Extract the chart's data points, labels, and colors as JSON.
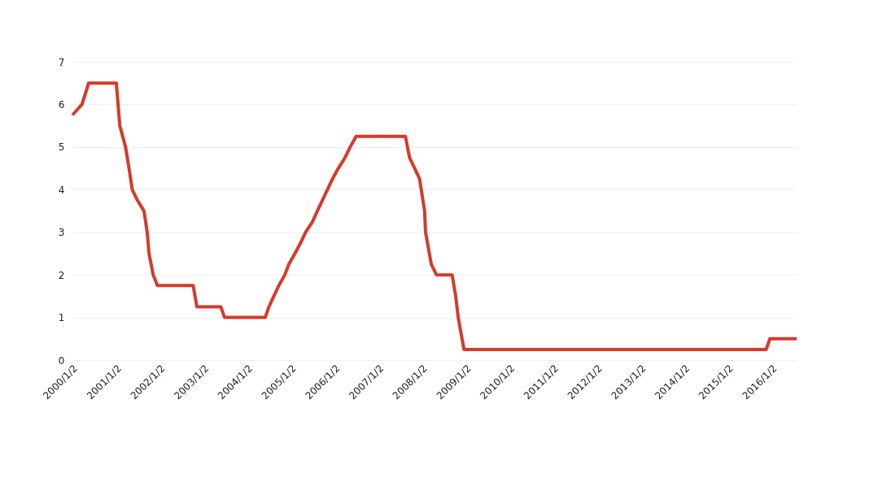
{
  "chart_data": {
    "type": "line",
    "x": [
      "2000-01-01",
      "2000-03-21",
      "2000-05-16",
      "2001-01-02",
      "2001-01-31",
      "2001-03-20",
      "2001-04-18",
      "2001-05-15",
      "2001-06-27",
      "2001-08-21",
      "2001-09-17",
      "2001-10-02",
      "2001-11-06",
      "2001-12-11",
      "2002-10-06",
      "2002-11-06",
      "2003-05-25",
      "2003-06-25",
      "2004-05-30",
      "2004-06-30",
      "2004-08-10",
      "2004-09-21",
      "2004-11-10",
      "2004-12-14",
      "2005-02-02",
      "2005-03-22",
      "2005-05-03",
      "2005-06-30",
      "2005-08-09",
      "2005-09-20",
      "2005-11-01",
      "2005-12-13",
      "2006-01-31",
      "2006-03-28",
      "2006-05-10",
      "2006-06-29",
      "2007-08-15",
      "2007-09-18",
      "2007-10-31",
      "2007-12-11",
      "2008-01-22",
      "2008-01-30",
      "2008-03-18",
      "2008-04-30",
      "2008-09-08",
      "2008-10-08",
      "2008-10-29",
      "2008-12-16",
      "2015-11-16",
      "2015-12-16",
      "2016-07-27"
    ],
    "series": [
      {
        "color": "#d63a2a",
        "values": [
          5.75,
          6.0,
          6.5,
          6.5,
          5.5,
          5.0,
          4.5,
          4.0,
          3.75,
          3.5,
          3.0,
          2.5,
          2.0,
          1.75,
          1.75,
          1.25,
          1.25,
          1.0,
          1.0,
          1.25,
          1.5,
          1.75,
          2.0,
          2.25,
          2.5,
          2.75,
          3.0,
          3.25,
          3.5,
          3.75,
          4.0,
          4.25,
          4.5,
          4.75,
          5.0,
          5.25,
          5.25,
          4.75,
          4.5,
          4.25,
          3.5,
          3.0,
          2.25,
          2.0,
          2.0,
          1.5,
          1.0,
          0.25,
          0.25,
          0.5,
          0.5
        ]
      }
    ],
    "xlim": [
      "2000-01-01",
      "2016-07-27"
    ],
    "xticks": [
      {
        "value": "2000-01-02",
        "label": "2000/1/2"
      },
      {
        "value": "2001-01-02",
        "label": "2001/1/2"
      },
      {
        "value": "2002-01-02",
        "label": "2002/1/2"
      },
      {
        "value": "2003-01-02",
        "label": "2003/1/2"
      },
      {
        "value": "2004-01-02",
        "label": "2004/1/2"
      },
      {
        "value": "2005-01-02",
        "label": "2005/1/2"
      },
      {
        "value": "2006-01-02",
        "label": "2006/1/2"
      },
      {
        "value": "2007-01-02",
        "label": "2007/1/2"
      },
      {
        "value": "2008-01-02",
        "label": "2008/1/2"
      },
      {
        "value": "2009-01-02",
        "label": "2009/1/2"
      },
      {
        "value": "2010-01-02",
        "label": "2010/1/2"
      },
      {
        "value": "2011-01-02",
        "label": "2011/1/2"
      },
      {
        "value": "2012-01-02",
        "label": "2012/1/2"
      },
      {
        "value": "2013-01-02",
        "label": "2013/1/2"
      },
      {
        "value": "2014-01-02",
        "label": "2014/1/2"
      },
      {
        "value": "2015-01-02",
        "label": "2015/1/2"
      },
      {
        "value": "2016-01-02",
        "label": "2016/1/2"
      }
    ],
    "ylim": [
      0,
      7
    ],
    "yticks": [
      0,
      1,
      2,
      3,
      4,
      5,
      6,
      7
    ],
    "grid": "y",
    "marker": "none",
    "line_style": "solid"
  }
}
